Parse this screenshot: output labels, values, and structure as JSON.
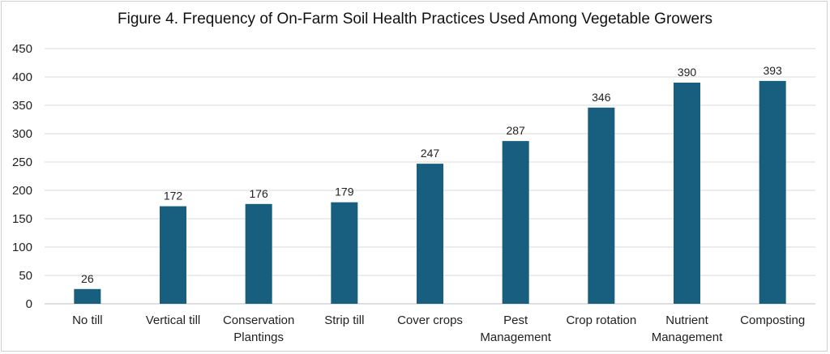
{
  "chart_data": {
    "type": "bar",
    "title": "Figure 4. Frequency of On-Farm Soil Health Practices Used Among Vegetable Growers",
    "xlabel": "",
    "ylabel": "",
    "ylim": [
      0,
      450
    ],
    "yticks": [
      0,
      50,
      100,
      150,
      200,
      250,
      300,
      350,
      400,
      450
    ],
    "grid": true,
    "legend": "none",
    "bar_color": "#175e7f",
    "categories": [
      [
        "No till"
      ],
      [
        "Vertical till"
      ],
      [
        "Conservation",
        "Plantings"
      ],
      [
        "Strip till"
      ],
      [
        "Cover crops"
      ],
      [
        "Pest",
        "Management"
      ],
      [
        "Crop rotation"
      ],
      [
        "Nutrient",
        "Management"
      ],
      [
        "Composting"
      ]
    ],
    "values": [
      26,
      172,
      176,
      179,
      247,
      287,
      346,
      390,
      393
    ]
  }
}
